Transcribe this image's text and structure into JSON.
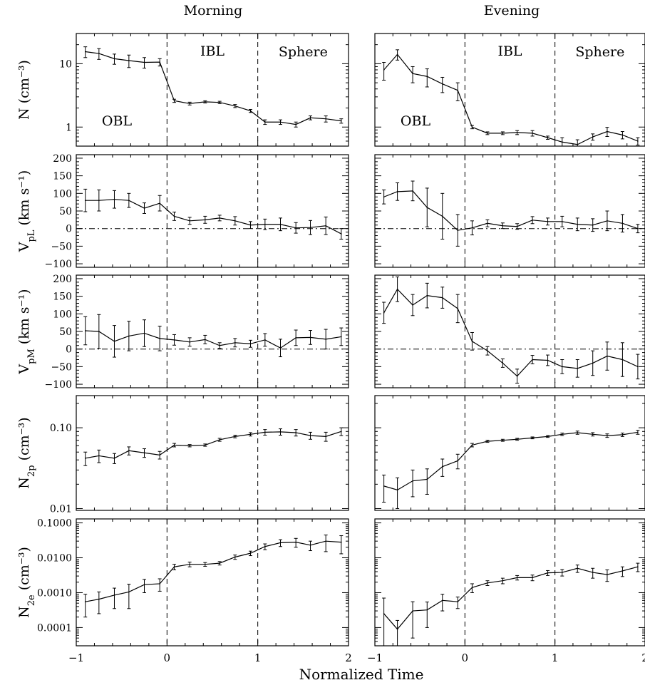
{
  "figure": {
    "column_titles": [
      "Morning",
      "Evening"
    ],
    "xlabel": "Normalized Time",
    "x_tick_labels": [
      "−1",
      "0",
      "1",
      "2"
    ]
  },
  "chart_data": {
    "type": "line",
    "xlabel": "Normalized Time",
    "xlim": [
      -1,
      2
    ],
    "x_ticks": [
      -1,
      0,
      1,
      2
    ],
    "x": [
      -0.9,
      -0.75,
      -0.58,
      -0.42,
      -0.25,
      -0.08,
      0.08,
      0.25,
      0.42,
      0.58,
      0.75,
      0.92,
      1.08,
      1.25,
      1.42,
      1.58,
      1.75,
      1.92
    ],
    "region_boundaries": [
      0,
      1
    ],
    "region_labels": [
      "OBL",
      "IBL",
      "Sphere"
    ],
    "columns": [
      "Morning",
      "Evening"
    ],
    "panels": [
      {
        "id": "N",
        "ylabel": "N (cm⁻³)",
        "scale": "log",
        "ylim": [
          0.5,
          30
        ],
        "y_tick_labels": [
          "1",
          "10"
        ],
        "y_tick_values": [
          1,
          10
        ],
        "region_text": true,
        "zero_line": false,
        "series": [
          {
            "column": "Morning",
            "values": [
              15.5,
              14.5,
              12,
              11.2,
              10.5,
              10.6,
              2.6,
              2.35,
              2.5,
              2.45,
              2.15,
              1.8,
              1.2,
              1.2,
              1.1,
              1.4,
              1.35,
              1.25
            ],
            "errors": [
              3,
              2.8,
              2.2,
              2.5,
              2,
              1.4,
              0.15,
              0.12,
              0.1,
              0.1,
              0.12,
              0.1,
              0.1,
              0.1,
              0.1,
              0.1,
              0.15,
              0.1
            ]
          },
          {
            "column": "Evening",
            "values": [
              8,
              14,
              7,
              6.3,
              4.8,
              3.8,
              1,
              0.8,
              0.8,
              0.82,
              0.8,
              0.68,
              0.58,
              0.53,
              0.7,
              0.85,
              0.75,
              0.6
            ],
            "errors": [
              2.5,
              2.6,
              2,
              2,
              1.3,
              1.2,
              0.06,
              0.04,
              0.04,
              0.06,
              0.08,
              0.04,
              0.1,
              0.1,
              0.08,
              0.14,
              0.1,
              0.08
            ]
          }
        ]
      },
      {
        "id": "VpL",
        "ylabel": "V_pL (km s⁻¹)",
        "scale": "linear",
        "ylim": [
          -110,
          210
        ],
        "y_tick_labels": [
          "200",
          "150",
          "100",
          "50",
          "0",
          "−50",
          "−100"
        ],
        "y_tick_values": [
          200,
          150,
          100,
          50,
          0,
          -50,
          -100
        ],
        "region_text": false,
        "zero_line": true,
        "series": [
          {
            "column": "Morning",
            "values": [
              80,
              80,
              83,
              80,
              58,
              72,
              35,
              22,
              25,
              30,
              22,
              10,
              12,
              12,
              2,
              3,
              8,
              -15
            ],
            "errors": [
              32,
              30,
              25,
              20,
              15,
              22,
              12,
              10,
              10,
              8,
              12,
              10,
              15,
              18,
              15,
              20,
              25,
              15
            ]
          },
          {
            "column": "Evening",
            "values": [
              90,
              105,
              107,
              60,
              35,
              -5,
              2,
              15,
              8,
              6,
              24,
              20,
              20,
              12,
              10,
              22,
              15,
              0
            ],
            "errors": [
              20,
              25,
              28,
              55,
              65,
              45,
              20,
              10,
              8,
              8,
              10,
              10,
              15,
              18,
              18,
              28,
              25,
              12
            ]
          }
        ]
      },
      {
        "id": "VpM",
        "ylabel": "V_pM (km s⁻¹)",
        "scale": "linear",
        "ylim": [
          -110,
          210
        ],
        "y_tick_labels": [
          "200",
          "150",
          "100",
          "50",
          "0",
          "−50",
          "−100"
        ],
        "y_tick_values": [
          200,
          150,
          100,
          50,
          0,
          -50,
          -100
        ],
        "region_text": false,
        "zero_line": true,
        "series": [
          {
            "column": "Morning",
            "values": [
              52,
              50,
              22,
              37,
              45,
              30,
              26,
              20,
              27,
              10,
              18,
              15,
              26,
              3,
              32,
              33,
              28,
              35
            ],
            "errors": [
              40,
              48,
              45,
              42,
              38,
              35,
              15,
              12,
              12,
              8,
              12,
              10,
              18,
              25,
              22,
              20,
              28,
              25
            ]
          },
          {
            "column": "Evening",
            "values": [
              103,
              170,
              125,
              152,
              146,
              115,
              22,
              -5,
              -40,
              -77,
              -30,
              -32,
              -50,
              -55,
              -40,
              -20,
              -30,
              -50
            ],
            "errors": [
              30,
              35,
              30,
              35,
              30,
              40,
              25,
              12,
              12,
              20,
              12,
              15,
              20,
              25,
              35,
              40,
              48,
              35
            ]
          }
        ]
      },
      {
        "id": "N2p",
        "ylabel": "N_2p (cm⁻³)",
        "scale": "log",
        "ylim": [
          0.0095,
          0.25
        ],
        "y_tick_labels": [
          "0.10",
          "0.01"
        ],
        "y_tick_values": [
          0.1,
          0.01
        ],
        "region_text": false,
        "zero_line": false,
        "series": [
          {
            "column": "Morning",
            "values": [
              0.042,
              0.045,
              0.042,
              0.052,
              0.049,
              0.046,
              0.061,
              0.06,
              0.061,
              0.071,
              0.078,
              0.083,
              0.088,
              0.089,
              0.087,
              0.08,
              0.078,
              0.09
            ],
            "errors": [
              0.008,
              0.008,
              0.006,
              0.006,
              0.006,
              0.005,
              0.003,
              0.002,
              0.002,
              0.003,
              0.003,
              0.004,
              0.007,
              0.008,
              0.008,
              0.008,
              0.01,
              0.01
            ]
          },
          {
            "column": "Evening",
            "values": [
              0.019,
              0.017,
              0.022,
              0.023,
              0.033,
              0.039,
              0.061,
              0.068,
              0.07,
              0.072,
              0.075,
              0.078,
              0.083,
              0.087,
              0.083,
              0.08,
              0.082,
              0.088
            ],
            "errors": [
              0.007,
              0.007,
              0.008,
              0.008,
              0.008,
              0.008,
              0.003,
              0.002,
              0.002,
              0.002,
              0.002,
              0.002,
              0.003,
              0.004,
              0.004,
              0.004,
              0.004,
              0.005
            ]
          }
        ]
      },
      {
        "id": "N2e",
        "ylabel": "N_2e (cm⁻³)",
        "scale": "log",
        "ylim": [
          3e-05,
          0.13
        ],
        "y_tick_labels": [
          "0.1000",
          "0.0100",
          "0.0010",
          "0.0001"
        ],
        "y_tick_values": [
          0.1,
          0.01,
          0.001,
          0.0001
        ],
        "region_text": false,
        "zero_line": false,
        "series": [
          {
            "column": "Morning",
            "values": [
              0.00055,
              0.00065,
              0.00085,
              0.00105,
              0.0017,
              0.0018,
              0.0055,
              0.0065,
              0.0065,
              0.007,
              0.0105,
              0.0135,
              0.021,
              0.027,
              0.028,
              0.023,
              0.03,
              0.028
            ],
            "errors": [
              0.00035,
              0.0004,
              0.0005,
              0.0007,
              0.0007,
              0.0007,
              0.001,
              0.001,
              0.0008,
              0.0008,
              0.0015,
              0.002,
              0.004,
              0.006,
              0.008,
              0.007,
              0.015,
              0.015
            ]
          },
          {
            "column": "Evening",
            "values": [
              0.00025,
              9e-05,
              0.0003,
              0.00032,
              0.0006,
              0.00055,
              0.0014,
              0.0019,
              0.0022,
              0.0027,
              0.0027,
              0.0037,
              0.0038,
              0.005,
              0.0038,
              0.0033,
              0.0042,
              0.0055
            ],
            "errors": [
              0.00045,
              7e-05,
              0.00025,
              0.00022,
              0.0003,
              0.0002,
              0.0004,
              0.0003,
              0.0004,
              0.0004,
              0.0005,
              0.0006,
              0.0008,
              0.0012,
              0.0012,
              0.0012,
              0.0013,
              0.0015
            ]
          }
        ]
      }
    ]
  }
}
